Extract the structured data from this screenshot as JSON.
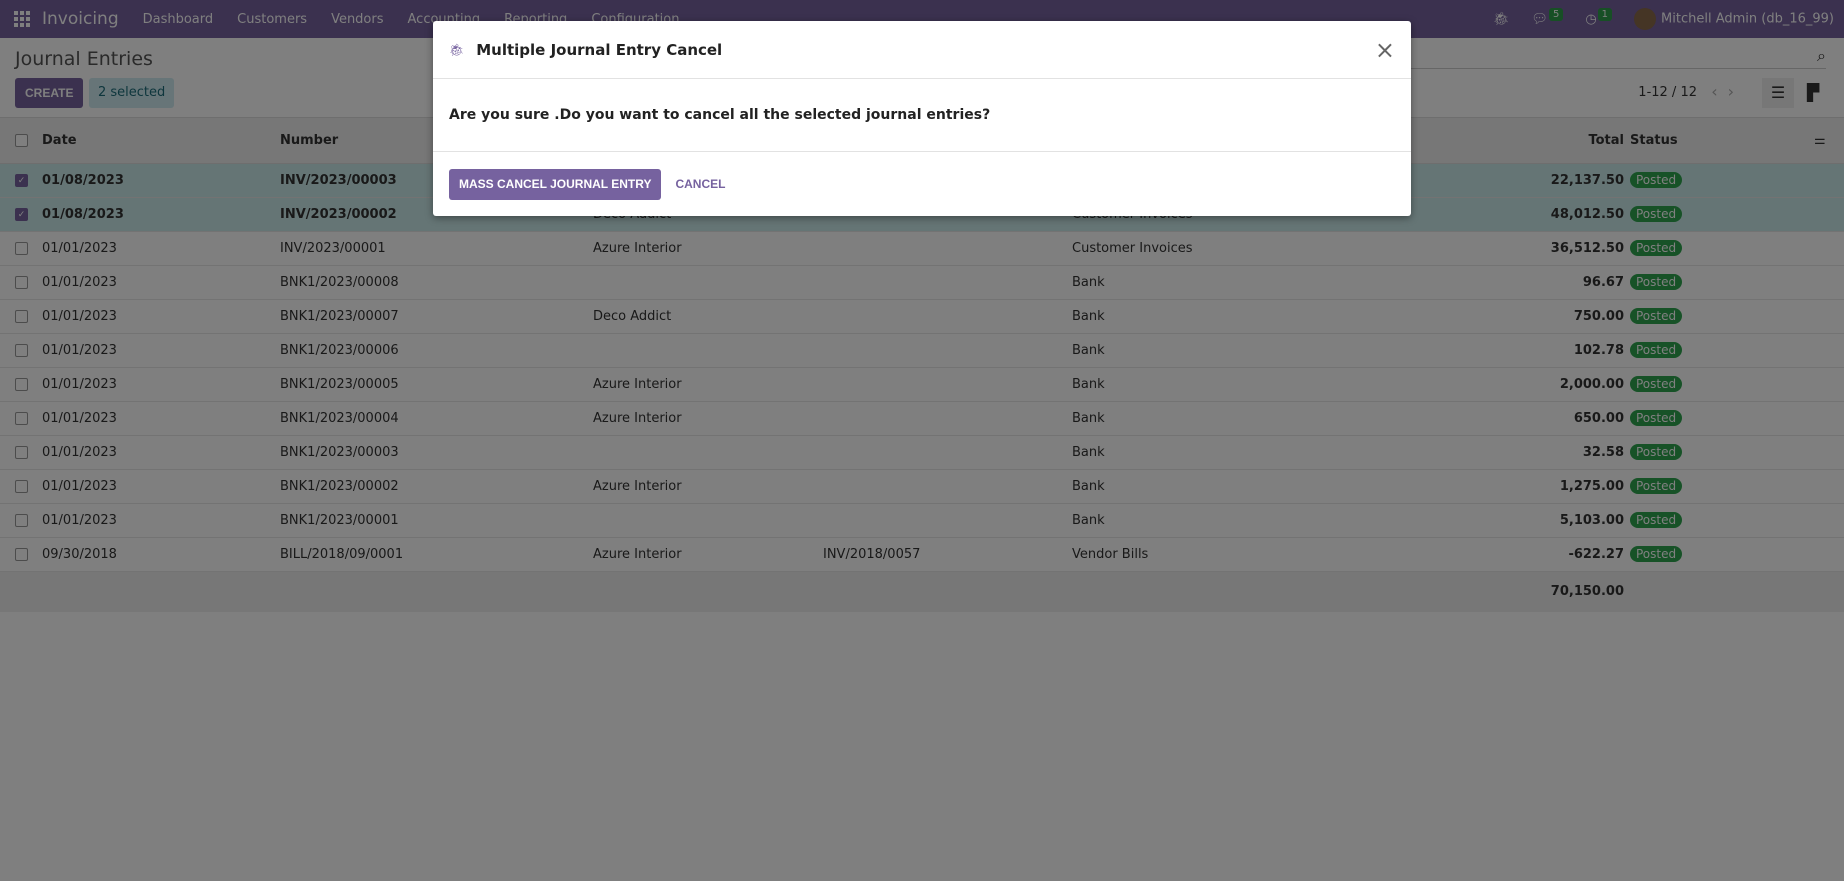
{
  "navbar": {
    "app": "Invoicing",
    "menus": [
      "Dashboard",
      "Customers",
      "Vendors",
      "Accounting",
      "Reporting",
      "Configuration"
    ],
    "messages_count": "5",
    "activities_count": "1",
    "user": "Mitchell Admin (db_16_99)"
  },
  "control": {
    "title": "Journal Entries",
    "create": "CREATE",
    "selected": "2 selected",
    "pager": "1-12 / 12"
  },
  "table": {
    "headers": {
      "date": "Date",
      "number": "Number",
      "total": "Total",
      "status": "Status"
    },
    "rows": [
      {
        "date": "01/08/2023",
        "number": "INV/2023/00003",
        "partner": "",
        "reference": "",
        "journal": "",
        "total": "22,137.50",
        "status": "Posted",
        "selected": true
      },
      {
        "date": "01/08/2023",
        "number": "INV/2023/00002",
        "partner": "Deco Addict",
        "reference": "",
        "journal": "Customer Invoices",
        "total": "48,012.50",
        "status": "Posted",
        "selected": true
      },
      {
        "date": "01/01/2023",
        "number": "INV/2023/00001",
        "partner": "Azure Interior",
        "reference": "",
        "journal": "Customer Invoices",
        "total": "36,512.50",
        "status": "Posted",
        "selected": false
      },
      {
        "date": "01/01/2023",
        "number": "BNK1/2023/00008",
        "partner": "",
        "reference": "",
        "journal": "Bank",
        "total": "96.67",
        "status": "Posted",
        "selected": false
      },
      {
        "date": "01/01/2023",
        "number": "BNK1/2023/00007",
        "partner": "Deco Addict",
        "reference": "",
        "journal": "Bank",
        "total": "750.00",
        "status": "Posted",
        "selected": false
      },
      {
        "date": "01/01/2023",
        "number": "BNK1/2023/00006",
        "partner": "",
        "reference": "",
        "journal": "Bank",
        "total": "102.78",
        "status": "Posted",
        "selected": false
      },
      {
        "date": "01/01/2023",
        "number": "BNK1/2023/00005",
        "partner": "Azure Interior",
        "reference": "",
        "journal": "Bank",
        "total": "2,000.00",
        "status": "Posted",
        "selected": false
      },
      {
        "date": "01/01/2023",
        "number": "BNK1/2023/00004",
        "partner": "Azure Interior",
        "reference": "",
        "journal": "Bank",
        "total": "650.00",
        "status": "Posted",
        "selected": false
      },
      {
        "date": "01/01/2023",
        "number": "BNK1/2023/00003",
        "partner": "",
        "reference": "",
        "journal": "Bank",
        "total": "32.58",
        "status": "Posted",
        "selected": false
      },
      {
        "date": "01/01/2023",
        "number": "BNK1/2023/00002",
        "partner": "Azure Interior",
        "reference": "",
        "journal": "Bank",
        "total": "1,275.00",
        "status": "Posted",
        "selected": false
      },
      {
        "date": "01/01/2023",
        "number": "BNK1/2023/00001",
        "partner": "",
        "reference": "",
        "journal": "Bank",
        "total": "5,103.00",
        "status": "Posted",
        "selected": false
      },
      {
        "date": "09/30/2018",
        "number": "BILL/2018/09/0001",
        "partner": "Azure Interior",
        "reference": "INV/2018/0057",
        "journal": "Vendor Bills",
        "total": "-622.27",
        "status": "Posted",
        "selected": false
      }
    ],
    "sum_total": "70,150.00"
  },
  "modal": {
    "title": "Multiple Journal Entry Cancel",
    "message": "Are you sure .Do you want to cancel all the selected journal entries?",
    "confirm": "MASS CANCEL JOURNAL ENTRY",
    "cancel": "CANCEL"
  },
  "colors": {
    "brand": "#76629f",
    "posted": "#2ea44f",
    "selected_row": "#caebeb"
  }
}
